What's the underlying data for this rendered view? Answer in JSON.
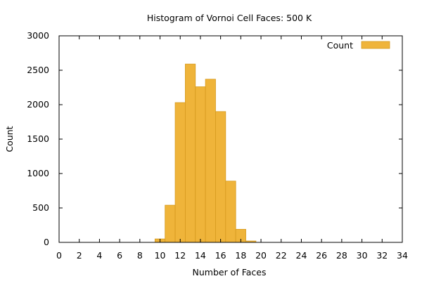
{
  "chart_data": {
    "type": "bar",
    "title": "Histogram of Vornoi Cell Faces: 500 K",
    "xlabel": "Number of Faces",
    "ylabel": "Count",
    "xlim": [
      0,
      34
    ],
    "ylim": [
      0,
      3000
    ],
    "xticks": [
      0,
      2,
      4,
      6,
      8,
      10,
      12,
      14,
      16,
      18,
      20,
      22,
      24,
      26,
      28,
      30,
      32,
      34
    ],
    "yticks": [
      0,
      500,
      1000,
      1500,
      2000,
      2500,
      3000
    ],
    "grid": false,
    "legend_position": "top-right",
    "bar_width": 1,
    "series": [
      {
        "name": "Count",
        "color": "#efb43a",
        "edge_color": "#d69a1e",
        "x": [
          10,
          11,
          12,
          13,
          14,
          15,
          16,
          17,
          18,
          19
        ],
        "values": [
          50,
          540,
          2030,
          2590,
          2260,
          2370,
          1900,
          890,
          190,
          20
        ]
      }
    ]
  }
}
